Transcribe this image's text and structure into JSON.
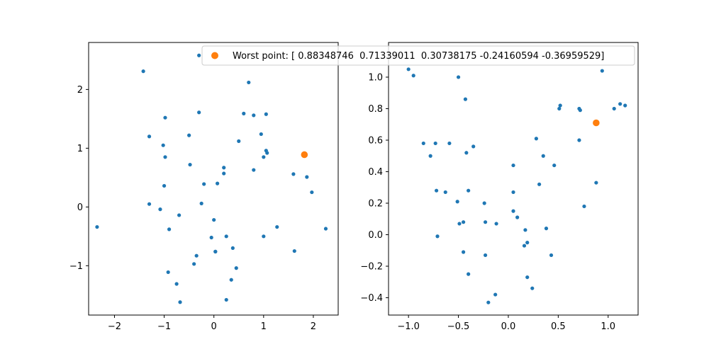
{
  "colors": {
    "series": "#1f77b4",
    "highlight": "#ff7f0e",
    "axis": "#000000"
  },
  "legend": {
    "label": "Worst point: [ 0.88348746  0.71339011  0.30738175 -0.24160594 -0.36959529]",
    "placement": "top, spanning both panels"
  },
  "chart_data": [
    {
      "type": "scatter",
      "xlim": [
        -2.52,
        2.5
      ],
      "ylim": [
        -1.84,
        2.8
      ],
      "xticks": [
        -2,
        -1,
        0,
        1,
        2
      ],
      "yticks": [
        -1,
        0,
        1,
        2
      ],
      "grid": false,
      "highlight": {
        "x": 1.82,
        "y": 0.89
      },
      "series": [
        {
          "x": [
            -1.42,
            0.7,
            -0.3,
            -0.98,
            0.6,
            0.8,
            1.05,
            -1.3,
            -0.5,
            0.5,
            0.95,
            -1.02,
            1.05,
            1.07,
            -0.98,
            1.0,
            -0.48,
            0.2,
            0.2,
            0.8,
            1.6,
            1.87,
            0.07,
            -0.2,
            -1.0,
            1.97,
            -1.3,
            -0.25,
            -1.08,
            -0.7,
            -0.9,
            -2.35,
            1.27,
            0.0,
            2.25,
            1.0,
            -0.05,
            0.25,
            -0.35,
            0.38,
            1.62,
            0.03,
            -0.4,
            0.45,
            -0.92,
            0.35,
            -0.75,
            0.25,
            -0.68,
            -0.3,
            0.03
          ],
          "y": [
            2.31,
            2.12,
            1.61,
            1.52,
            1.59,
            1.56,
            1.58,
            1.2,
            1.22,
            1.12,
            1.24,
            1.05,
            0.96,
            0.92,
            0.85,
            0.85,
            0.72,
            0.67,
            0.57,
            0.63,
            0.56,
            0.51,
            0.4,
            0.39,
            0.36,
            0.25,
            0.05,
            0.06,
            -0.04,
            -0.14,
            -0.38,
            -0.34,
            -0.34,
            -0.22,
            -0.37,
            -0.5,
            -0.52,
            -0.5,
            -0.83,
            -0.7,
            -0.75,
            -0.76,
            -0.97,
            -1.04,
            -1.11,
            -1.24,
            -1.31,
            -1.58,
            -1.62,
            2.58,
            -0.76
          ]
        }
      ]
    },
    {
      "type": "scatter",
      "xlim": [
        -1.2,
        1.3
      ],
      "ylim": [
        -0.51,
        1.22
      ],
      "xticks": [
        -1.0,
        -0.5,
        0.0,
        0.5,
        1.0
      ],
      "yticks": [
        -0.4,
        -0.2,
        0.0,
        0.2,
        0.4,
        0.6,
        0.8,
        1.0
      ],
      "grid": false,
      "highlight": {
        "x": 0.88,
        "y": 0.71
      },
      "series": [
        {
          "x": [
            -1.0,
            -0.95,
            -0.5,
            0.94,
            -0.43,
            0.52,
            0.51,
            0.71,
            0.72,
            1.12,
            1.17,
            1.06,
            -0.85,
            -0.73,
            -0.59,
            0.71,
            -0.35,
            -0.42,
            0.28,
            -0.78,
            0.35,
            0.05,
            0.46,
            -0.72,
            -0.4,
            0.05,
            -0.63,
            0.31,
            0.88,
            -0.51,
            -0.24,
            0.76,
            0.05,
            0.09,
            -0.23,
            -0.45,
            -0.49,
            -0.12,
            0.17,
            0.38,
            -0.71,
            0.19,
            0.16,
            -0.45,
            -0.23,
            0.43,
            -0.4,
            0.19,
            0.24,
            -0.13,
            -0.2
          ],
          "y": [
            1.05,
            1.01,
            1.0,
            1.04,
            0.86,
            0.82,
            0.8,
            0.8,
            0.79,
            0.83,
            0.82,
            0.8,
            0.58,
            0.58,
            0.58,
            0.6,
            0.56,
            0.52,
            0.61,
            0.5,
            0.5,
            0.44,
            0.44,
            0.28,
            0.28,
            0.27,
            0.27,
            0.32,
            0.33,
            0.21,
            0.2,
            0.18,
            0.15,
            0.11,
            0.08,
            0.08,
            0.07,
            0.07,
            0.03,
            0.04,
            -0.01,
            -0.05,
            -0.07,
            -0.11,
            -0.13,
            -0.13,
            -0.25,
            -0.27,
            -0.34,
            -0.38,
            -0.43
          ]
        }
      ]
    }
  ]
}
